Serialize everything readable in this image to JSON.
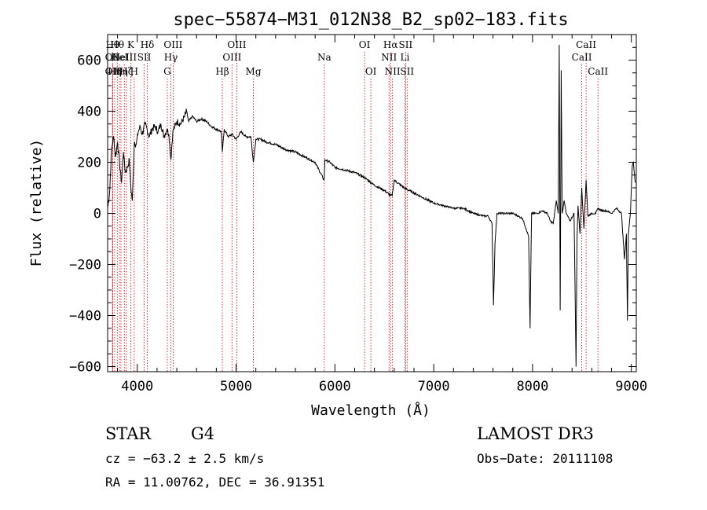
{
  "chart_data": {
    "type": "line",
    "title": "spec−55874−M31_012N38_B2_sp02−183.fits",
    "xlabel": "Wavelength (Å)",
    "ylabel": "Flux (relative)",
    "xlim": [
      3700,
      9050
    ],
    "ylim": [
      -620,
      700
    ],
    "xticks": [
      4000,
      5000,
      6000,
      7000,
      8000,
      9000
    ],
    "xtick_labels": [
      "4000",
      "5000",
      "6000",
      "7000",
      "8000",
      "9000"
    ],
    "yticks": [
      -600,
      -400,
      -200,
      0,
      200,
      400,
      600
    ],
    "ytick_labels": [
      "−600",
      "−400",
      "−200",
      "0",
      "200",
      "400",
      "600"
    ],
    "grid": false,
    "line_color": "#000000",
    "marker_color": "#cc0000",
    "series": [
      {
        "x": [
          3700,
          3720,
          3740,
          3760,
          3780,
          3800,
          3820,
          3840,
          3860,
          3880,
          3900,
          3920,
          3935,
          3950,
          3970,
          3990,
          4010,
          4030,
          4050,
          4080,
          4100,
          4120,
          4150,
          4180,
          4210,
          4240,
          4270,
          4300,
          4320,
          4340,
          4360,
          4400,
          4440,
          4480,
          4500,
          4520,
          4560,
          4600,
          4650,
          4700,
          4750,
          4800,
          4850,
          4861,
          4880,
          4920,
          4960,
          5000,
          5050,
          5100,
          5150,
          5175,
          5200,
          5250,
          5300,
          5400,
          5500,
          5600,
          5700,
          5800,
          5890,
          5900,
          5950,
          6000,
          6100,
          6200,
          6300,
          6400,
          6500,
          6563,
          6580,
          6600,
          6700,
          6800,
          6900,
          7000,
          7100,
          7200,
          7300,
          7400,
          7500,
          7550,
          7590,
          7605,
          7620,
          7640,
          7700,
          7800,
          7900,
          7960,
          7975,
          7990,
          8050,
          8100,
          8150,
          8180,
          8210,
          8240,
          8260,
          8270,
          8280,
          8290,
          8300,
          8320,
          8340,
          8380,
          8420,
          8440,
          8450,
          8460,
          8480,
          8498,
          8520,
          8542,
          8560,
          8600,
          8640,
          8662,
          8700,
          8750,
          8800,
          8850,
          8900,
          8930,
          8950,
          8960,
          8970,
          8990,
          9000,
          9010,
          9020,
          9040
        ],
        "y": [
          20,
          80,
          250,
          300,
          220,
          280,
          200,
          120,
          240,
          160,
          180,
          210,
          100,
          50,
          280,
          270,
          320,
          340,
          310,
          350,
          330,
          300,
          330,
          340,
          320,
          350,
          300,
          330,
          310,
          210,
          320,
          360,
          350,
          380,
          400,
          360,
          380,
          360,
          370,
          360,
          340,
          330,
          320,
          240,
          330,
          300,
          310,
          290,
          320,
          300,
          300,
          200,
          290,
          290,
          280,
          270,
          250,
          240,
          220,
          200,
          130,
          210,
          200,
          180,
          170,
          160,
          140,
          110,
          90,
          70,
          70,
          130,
          100,
          80,
          60,
          40,
          30,
          20,
          20,
          0,
          -10,
          -10,
          -40,
          -360,
          -120,
          0,
          0,
          0,
          -20,
          -90,
          -450,
          0,
          0,
          10,
          0,
          -30,
          -40,
          50,
          0,
          660,
          -380,
          560,
          0,
          50,
          0,
          -30,
          0,
          -600,
          -100,
          30,
          -80,
          100,
          -60,
          130,
          -10,
          0,
          0,
          20,
          10,
          10,
          0,
          20,
          0,
          -180,
          -80,
          -420,
          -80,
          0,
          100,
          190,
          200,
          120
        ]
      }
    ],
    "line_markers": [
      {
        "x": 3750,
        "label": "Hθ",
        "row": 1
      },
      {
        "x": 3750,
        "label": "OII",
        "row": 2
      },
      {
        "x": 3750,
        "label": "OII",
        "row": 3
      },
      {
        "x": 3771,
        "label": "Hη",
        "row": 3
      },
      {
        "x": 3798,
        "label": "Hθ",
        "row": 1
      },
      {
        "x": 3820,
        "label": "HeI",
        "row": 2
      },
      {
        "x": 3835,
        "label": "Hη",
        "row": 3
      },
      {
        "x": 3869,
        "label": "NeIII",
        "row": 2
      },
      {
        "x": 3889,
        "label": "Hζ",
        "row": 3
      },
      {
        "x": 3934,
        "label": "K",
        "row": 1
      },
      {
        "x": 3969,
        "label": "H",
        "row": 3
      },
      {
        "x": 4070,
        "label": "SII",
        "row": 2
      },
      {
        "x": 4102,
        "label": "Hδ",
        "row": 1
      },
      {
        "x": 4304,
        "label": "G",
        "row": 3
      },
      {
        "x": 4340,
        "label": "Hγ",
        "row": 2
      },
      {
        "x": 4363,
        "label": "OIII",
        "row": 1
      },
      {
        "x": 4861,
        "label": "Hβ",
        "row": 3
      },
      {
        "x": 4959,
        "label": "OIII",
        "row": 2
      },
      {
        "x": 5007,
        "label": "OIII",
        "row": 1
      },
      {
        "x": 5175,
        "label": "Mg",
        "row": 3
      },
      {
        "x": 5893,
        "label": "Na",
        "row": 2
      },
      {
        "x": 6300,
        "label": "OI",
        "row": 1
      },
      {
        "x": 6364,
        "label": "OI",
        "row": 3
      },
      {
        "x": 6548,
        "label": "NII",
        "row": 2
      },
      {
        "x": 6563,
        "label": "Hα",
        "row": 1
      },
      {
        "x": 6583,
        "label": "NII",
        "row": 3
      },
      {
        "x": 6708,
        "label": "Li",
        "row": 2
      },
      {
        "x": 6716,
        "label": "SII",
        "row": 1
      },
      {
        "x": 6731,
        "label": "SII",
        "row": 3
      },
      {
        "x": 8498,
        "label": "CaII",
        "row": 2
      },
      {
        "x": 8542,
        "label": "CaII",
        "row": 1
      },
      {
        "x": 8662,
        "label": "CaII",
        "row": 3
      }
    ]
  },
  "info": {
    "object_class": "STAR",
    "subclass": "G4",
    "survey": "LAMOST DR3",
    "cz_text": "cz = −63.2 ± 2.5 km/s",
    "obs_date_text": "Obs−Date: 20111108",
    "coords_text": "RA =  11.00762, DEC =  36.91351"
  }
}
